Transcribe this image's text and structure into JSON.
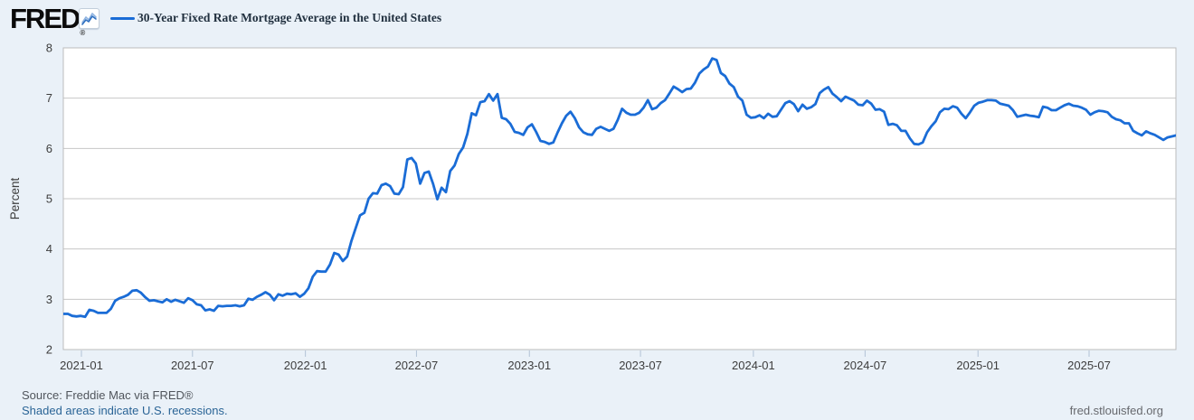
{
  "header": {
    "logo_text": "FRED",
    "logo_registered": "®",
    "legend_label": "30-Year Fixed Rate Mortgage Average in the United States"
  },
  "footer": {
    "source_line": "Source: Freddie Mac via FRED®",
    "recession_note": "Shaded areas indicate U.S. recessions.",
    "watermark": "fred.stlouisfed.org"
  },
  "colors": {
    "background": "#eaf1f8",
    "plot_background": "#ffffff",
    "series_line": "#1a6cd6",
    "gridline": "#c7c7c7",
    "plot_border": "#bcbcbc",
    "axis_text": "#3d3d3d",
    "tick_mark": "#b2c3d6",
    "icon_zigzag_dark": "#2e6fc0",
    "icon_zigzag_light": "#8db2e0"
  },
  "chart_data": {
    "type": "line",
    "title": "30-Year Fixed Rate Mortgage Average in the United States",
    "xlabel": "",
    "ylabel": "Percent",
    "ylim": [
      2,
      8
    ],
    "y_ticks": [
      2,
      3,
      4,
      5,
      6,
      7,
      8
    ],
    "x_ticks": [
      "2021-01",
      "2021-07",
      "2022-01",
      "2022-07",
      "2023-01",
      "2023-07",
      "2024-01",
      "2024-07",
      "2025-01",
      "2025-07"
    ],
    "grid": "horizontal",
    "legend_position": "top-left",
    "units": "Percent",
    "frequency": "Weekly",
    "series": [
      {
        "name": "30-Year Fixed Rate Mortgage Average in the United States",
        "start_date": "2020-12-03",
        "interval_days": 7,
        "values": [
          2.71,
          2.71,
          2.67,
          2.66,
          2.67,
          2.65,
          2.79,
          2.77,
          2.73,
          2.73,
          2.73,
          2.81,
          2.97,
          3.02,
          3.05,
          3.09,
          3.17,
          3.18,
          3.13,
          3.04,
          2.97,
          2.98,
          2.96,
          2.94,
          3.0,
          2.95,
          2.99,
          2.96,
          2.93,
          3.02,
          2.98,
          2.9,
          2.88,
          2.78,
          2.8,
          2.77,
          2.87,
          2.86,
          2.87,
          2.87,
          2.88,
          2.86,
          2.88,
          3.01,
          2.99,
          3.05,
          3.09,
          3.14,
          3.09,
          2.98,
          3.1,
          3.07,
          3.11,
          3.1,
          3.12,
          3.05,
          3.11,
          3.22,
          3.45,
          3.56,
          3.55,
          3.55,
          3.69,
          3.92,
          3.89,
          3.76,
          3.85,
          4.16,
          4.42,
          4.67,
          4.72,
          5.0,
          5.11,
          5.1,
          5.27,
          5.3,
          5.25,
          5.1,
          5.09,
          5.23,
          5.78,
          5.81,
          5.7,
          5.3,
          5.51,
          5.54,
          5.3,
          4.99,
          5.22,
          5.13,
          5.55,
          5.66,
          5.89,
          6.02,
          6.29,
          6.7,
          6.66,
          6.92,
          6.94,
          7.08,
          6.95,
          7.08,
          6.61,
          6.58,
          6.49,
          6.33,
          6.31,
          6.27,
          6.42,
          6.48,
          6.33,
          6.15,
          6.13,
          6.09,
          6.12,
          6.32,
          6.5,
          6.65,
          6.73,
          6.6,
          6.42,
          6.32,
          6.28,
          6.27,
          6.39,
          6.43,
          6.39,
          6.35,
          6.39,
          6.57,
          6.79,
          6.71,
          6.67,
          6.67,
          6.71,
          6.81,
          6.96,
          6.78,
          6.81,
          6.9,
          6.96,
          7.09,
          7.23,
          7.18,
          7.12,
          7.18,
          7.19,
          7.31,
          7.49,
          7.57,
          7.63,
          7.79,
          7.76,
          7.5,
          7.44,
          7.29,
          7.22,
          7.03,
          6.95,
          6.67,
          6.61,
          6.62,
          6.66,
          6.6,
          6.69,
          6.63,
          6.64,
          6.77,
          6.9,
          6.94,
          6.88,
          6.74,
          6.87,
          6.79,
          6.82,
          6.88,
          7.1,
          7.17,
          7.22,
          7.09,
          7.02,
          6.94,
          7.03,
          6.99,
          6.95,
          6.87,
          6.86,
          6.95,
          6.89,
          6.77,
          6.78,
          6.73,
          6.47,
          6.49,
          6.46,
          6.35,
          6.35,
          6.2,
          6.09,
          6.08,
          6.12,
          6.32,
          6.44,
          6.54,
          6.72,
          6.79,
          6.78,
          6.84,
          6.81,
          6.69,
          6.6,
          6.72,
          6.85,
          6.91,
          6.93,
          6.96,
          6.96,
          6.95,
          6.89,
          6.87,
          6.85,
          6.76,
          6.63,
          6.65,
          6.67,
          6.65,
          6.64,
          6.62,
          6.83,
          6.81,
          6.76,
          6.76,
          6.81,
          6.86,
          6.89,
          6.85,
          6.84,
          6.81,
          6.77,
          6.67,
          6.72,
          6.75,
          6.74,
          6.72,
          6.63,
          6.58,
          6.56,
          6.5,
          6.5,
          6.35,
          6.3,
          6.26,
          6.34,
          6.3,
          6.27,
          6.22,
          6.17,
          6.22,
          6.24,
          6.26
        ]
      }
    ]
  }
}
